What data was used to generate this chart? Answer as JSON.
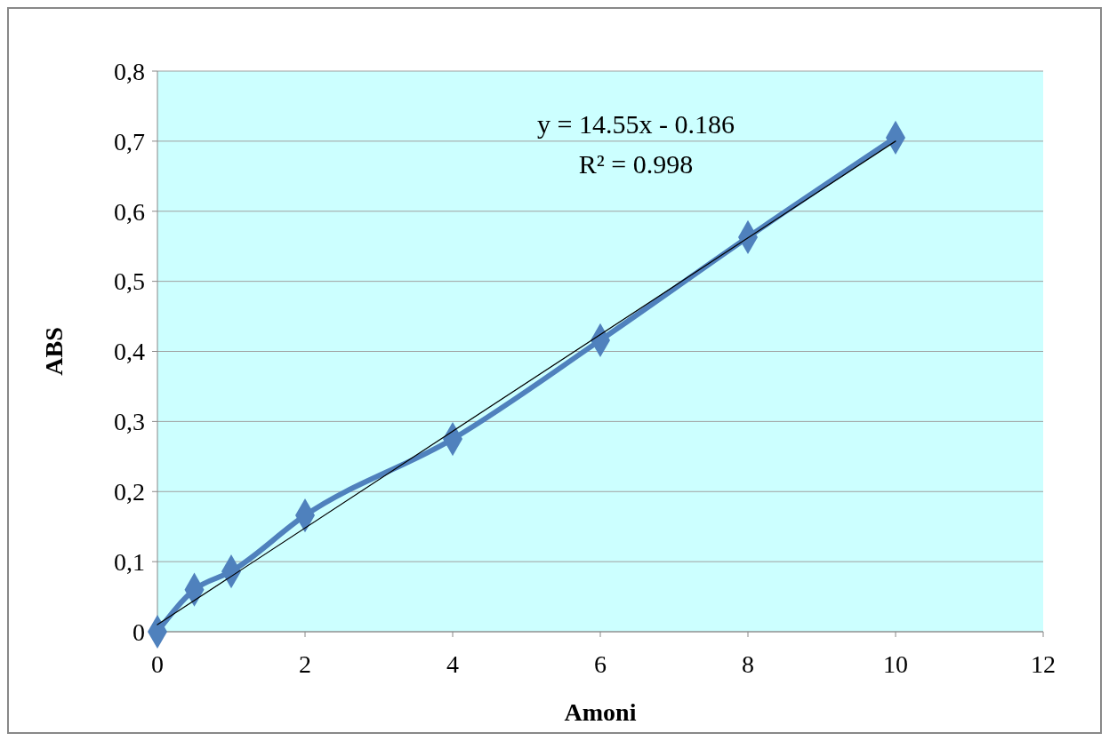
{
  "chart_data": {
    "type": "line",
    "xlabel": "Amoni",
    "ylabel": "ABS",
    "xlim": [
      0,
      12
    ],
    "xticks": [
      0,
      2,
      4,
      6,
      8,
      10,
      12
    ],
    "ylim": [
      0,
      0.8
    ],
    "yticks": [
      0,
      {
        "value": 0.1,
        "label": "0,1"
      },
      {
        "value": 0.2,
        "label": "0,2"
      },
      {
        "value": 0.3,
        "label": "0,3"
      },
      {
        "value": 0.4,
        "label": "0,4"
      },
      {
        "value": 0.5,
        "label": "0,5"
      },
      {
        "value": 0.6,
        "label": "0,6"
      },
      {
        "value": 0.7,
        "label": "0,7"
      },
      {
        "value": 0.8,
        "label": "0,8"
      }
    ],
    "grid": "y",
    "series": [
      {
        "color": "#4f81bd",
        "marker": "diamond",
        "x": [
          0,
          0.5,
          1,
          2,
          4,
          6,
          8,
          10
        ],
        "values": [
          0,
          0.06,
          0.086,
          0.166,
          0.275,
          0.416,
          0.563,
          0.705
        ]
      },
      {
        "color": "#000000",
        "marker": "none",
        "x": [
          0,
          10
        ],
        "values": [
          0.01,
          0.7
        ]
      }
    ],
    "annotations": [
      "y = 14.55x - 0.186",
      "R² = 0.998"
    ]
  }
}
